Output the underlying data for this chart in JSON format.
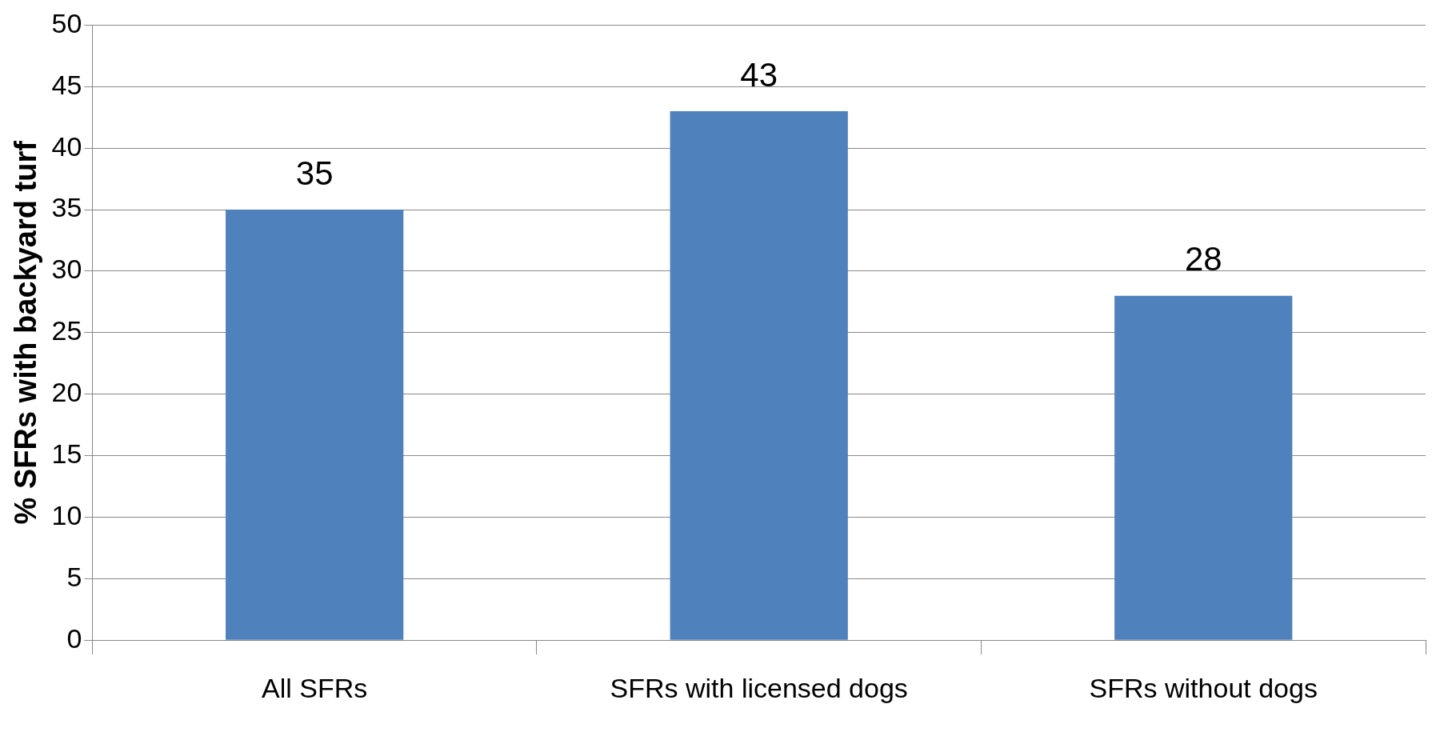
{
  "chart_data": {
    "type": "bar",
    "ylabel": "% SFRs with backyard turf",
    "categories": [
      "All SFRs",
      "SFRs with licensed dogs",
      "SFRs without dogs"
    ],
    "values": [
      35,
      43,
      28
    ],
    "color": "#4f81bd",
    "ylim": [
      0,
      50
    ],
    "yticks": [
      0,
      5,
      10,
      15,
      20,
      25,
      30,
      35,
      40,
      45,
      50
    ],
    "grid": "y",
    "data_labels": true,
    "legend": false
  }
}
